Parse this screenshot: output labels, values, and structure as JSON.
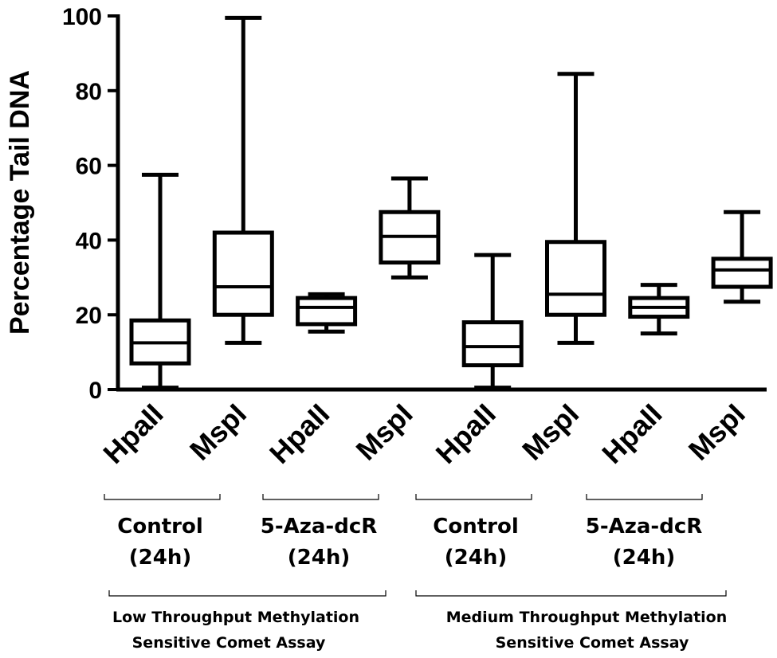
{
  "chart_data": {
    "type": "boxplot",
    "ylabel": "Percentage Tail DNA",
    "ylim": [
      0,
      100
    ],
    "yticks": [
      0,
      20,
      40,
      60,
      80,
      100
    ],
    "categories": [
      "HpaII",
      "MspI",
      "HpaII",
      "MspI",
      "HpaII",
      "MspI",
      "HpaII",
      "MspI"
    ],
    "boxes": [
      {
        "min": 0.5,
        "q1": 7,
        "median": 12.5,
        "q3": 18.5,
        "max": 57.5
      },
      {
        "min": 12.5,
        "q1": 20,
        "median": 27.5,
        "q3": 42,
        "max": 99.5
      },
      {
        "min": 15.5,
        "q1": 17.5,
        "median": 22,
        "q3": 24.5,
        "max": 25.5
      },
      {
        "min": 30,
        "q1": 34,
        "median": 41,
        "q3": 47.5,
        "max": 56.5
      },
      {
        "min": 0.5,
        "q1": 6.5,
        "median": 11.5,
        "q3": 18,
        "max": 36
      },
      {
        "min": 12.5,
        "q1": 20,
        "median": 25.5,
        "q3": 39.5,
        "max": 84.5
      },
      {
        "min": 15,
        "q1": 19.5,
        "median": 22,
        "q3": 24.5,
        "max": 28
      },
      {
        "min": 23.5,
        "q1": 27.5,
        "median": 32,
        "q3": 35,
        "max": 47.5
      }
    ],
    "groups": [
      {
        "line1": "Control",
        "line2": "(24h)"
      },
      {
        "line1": "5-Aza-dcR",
        "line2": "(24h)"
      },
      {
        "line1": "Control",
        "line2": "(24h)"
      },
      {
        "line1": "5-Aza-dcR",
        "line2": "(24h)"
      }
    ],
    "assays": [
      {
        "line1": "Low Throughput Methylation",
        "line2": "Sensitive Comet Assay"
      },
      {
        "line1": "Medium Throughput Methylation",
        "line2": "Sensitive Comet Assay"
      }
    ],
    "grid": false,
    "legend": "none"
  }
}
